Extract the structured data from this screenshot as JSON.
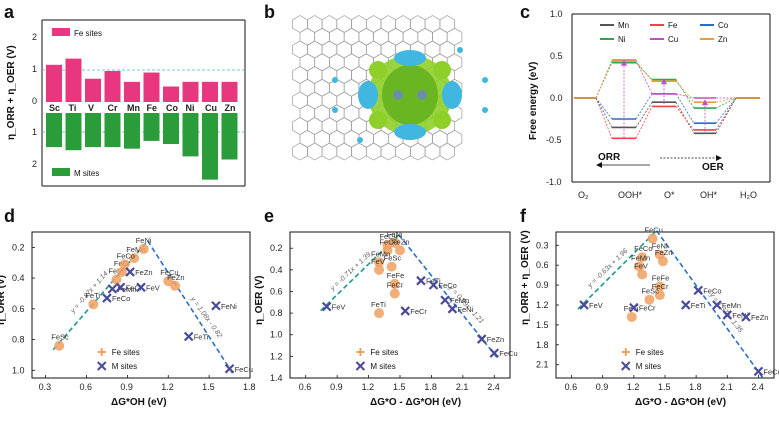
{
  "panels": {
    "a": {
      "label": "a",
      "ylabel": "η_ORR + η_OER (V)",
      "yticks_top": [
        "2",
        "1",
        "0"
      ],
      "yticks_bottom": [
        "1",
        "2"
      ],
      "legend_top": "Fe sites",
      "legend_bottom": "M sites",
      "categories": [
        "Sc",
        "Ti",
        "V",
        "Cr",
        "Mn",
        "Fe",
        "Co",
        "Ni",
        "Cu",
        "Zn"
      ],
      "fe_sites": [
        1.2,
        1.4,
        0.75,
        1.0,
        0.65,
        0.95,
        0.5,
        0.65,
        0.65,
        0.65
      ],
      "m_sites": [
        1.1,
        1.2,
        1.1,
        1.1,
        1.15,
        0.9,
        1.0,
        1.4,
        2.15,
        1.5
      ],
      "colors": {
        "fe": "#e8377f",
        "m": "#2a9d3a"
      }
    },
    "b": {
      "label": "b"
    },
    "c": {
      "label": "c",
      "ylabel": "Free energy (eV)",
      "yticks": [
        "1.0",
        "0.5",
        "0.0",
        "-0.5",
        "-1.0"
      ],
      "xcats": [
        "O₂",
        "OOH*",
        "O*",
        "OH*",
        "H₂O"
      ],
      "legend": [
        "Mn",
        "Fe",
        "Co",
        "Ni",
        "Cu",
        "Zn"
      ],
      "colors": {
        "Mn": "#555555",
        "Fe": "#e84545",
        "Co": "#2a6fc7",
        "Ni": "#2aa84a",
        "Cu": "#c84ac8",
        "Zn": "#e8a030"
      },
      "orr": "ORR",
      "oer": "OER"
    },
    "d": {
      "label": "d",
      "ylabel": "η_ORR (V)",
      "xlabel": "ΔG*OH (eV)",
      "xticks": [
        "0.3",
        "0.6",
        "0.9",
        "1.2",
        "1.5",
        "1.8"
      ],
      "yticks": [
        "0.2",
        "0.4",
        "0.6",
        "0.8",
        "1.0"
      ],
      "eq_left": "y = -0.87x + 1.14",
      "eq_right": "y = 1.08x - 0.82",
      "legend": [
        "Fe sites",
        "M sites"
      ],
      "fe_points": [
        {
          "n": "FeSc",
          "x": 0.4,
          "y": 0.84
        },
        {
          "n": "FeTi",
          "x": 0.65,
          "y": 0.57
        },
        {
          "n": "FeV",
          "x": 0.82,
          "y": 0.41
        },
        {
          "n": "FeCr",
          "x": 0.86,
          "y": 0.36
        },
        {
          "n": "FeMn",
          "x": 0.95,
          "y": 0.27
        },
        {
          "n": "FeCo",
          "x": 0.88,
          "y": 0.31
        },
        {
          "n": "FeNi",
          "x": 1.02,
          "y": 0.21
        },
        {
          "n": "FeCu",
          "x": 1.2,
          "y": 0.42
        },
        {
          "n": "FeZn",
          "x": 1.25,
          "y": 0.45
        }
      ],
      "m_points": [
        {
          "n": "FeCo",
          "x": 0.75,
          "y": 0.53
        },
        {
          "n": "FeMn",
          "x": 0.79,
          "y": 0.47
        },
        {
          "n": "FeCr",
          "x": 0.85,
          "y": 0.46
        },
        {
          "n": "FeV",
          "x": 1.0,
          "y": 0.46
        },
        {
          "n": "FeZn",
          "x": 0.92,
          "y": 0.36
        },
        {
          "n": "FeTi",
          "x": 1.35,
          "y": 0.78
        },
        {
          "n": "FeNi",
          "x": 1.55,
          "y": 0.58
        },
        {
          "n": "FeCu",
          "x": 1.65,
          "y": 0.99
        }
      ]
    },
    "e": {
      "label": "e",
      "ylabel": "η_OER (V)",
      "xlabel": "ΔG*O - ΔG*OH (eV)",
      "xticks": [
        "0.6",
        "0.9",
        "1.2",
        "1.5",
        "1.8",
        "2.1",
        "2.4"
      ],
      "yticks": [
        "0.2",
        "0.4",
        "0.6",
        "0.8",
        "1.0",
        "1.2",
        "1.4"
      ],
      "eq_left": "y = -0.71x + 1.39",
      "eq_right": "y = 0.99x - 1.21",
      "legend": [
        "Fe sites",
        "M sites"
      ],
      "fe_points": [
        {
          "n": "FeCu",
          "x": 1.38,
          "y": 0.17
        },
        {
          "n": "FeNi",
          "x": 1.45,
          "y": 0.15
        },
        {
          "n": "FeCo",
          "x": 1.38,
          "y": 0.22
        },
        {
          "n": "FeZn",
          "x": 1.5,
          "y": 0.22
        },
        {
          "n": "FeMn",
          "x": 1.3,
          "y": 0.33
        },
        {
          "n": "FeV",
          "x": 1.3,
          "y": 0.4
        },
        {
          "n": "FeSc",
          "x": 1.42,
          "y": 0.37
        },
        {
          "n": "FeFe",
          "x": 1.45,
          "y": 0.53
        },
        {
          "n": "FeCr",
          "x": 1.45,
          "y": 0.62
        },
        {
          "n": "FeTi",
          "x": 1.3,
          "y": 0.8
        }
      ],
      "m_points": [
        {
          "n": "FeV",
          "x": 0.8,
          "y": 0.74
        },
        {
          "n": "FeCr",
          "x": 1.55,
          "y": 0.78
        },
        {
          "n": "FeTi",
          "x": 1.7,
          "y": 0.5
        },
        {
          "n": "FeCo",
          "x": 1.82,
          "y": 0.54
        },
        {
          "n": "FeMn",
          "x": 1.93,
          "y": 0.68
        },
        {
          "n": "FeNi",
          "x": 2.0,
          "y": 0.76
        },
        {
          "n": "FeZn",
          "x": 2.28,
          "y": 1.04
        },
        {
          "n": "FeCu",
          "x": 2.4,
          "y": 1.17
        }
      ]
    },
    "f": {
      "label": "f",
      "ylabel": "η_ORR + η_OER (V)",
      "xlabel": "ΔG*O - ΔG*OH (eV)",
      "xticks": [
        "0.6",
        "0.9",
        "1.2",
        "1.5",
        "1.8",
        "2.1",
        "2.4"
      ],
      "yticks": [
        "0.3",
        "0.6",
        "0.9",
        "1.2",
        "1.5",
        "1.8",
        "2.1"
      ],
      "eq_left": "y = -0.63x + 1.96",
      "eq_right": "y = 1.37x - 1.35",
      "legend": [
        "Fe sites",
        "M sites"
      ],
      "fe_points": [
        {
          "n": "FeCu",
          "x": 1.38,
          "y": 0.2
        },
        {
          "n": "FeNi",
          "x": 1.45,
          "y": 0.44
        },
        {
          "n": "FeCo",
          "x": 1.28,
          "y": 0.48
        },
        {
          "n": "FeZn",
          "x": 1.48,
          "y": 0.54
        },
        {
          "n": "FeMn",
          "x": 1.25,
          "y": 0.62
        },
        {
          "n": "FeV",
          "x": 1.28,
          "y": 0.74
        },
        {
          "n": "FeFe",
          "x": 1.45,
          "y": 0.92
        },
        {
          "n": "FeCr",
          "x": 1.45,
          "y": 1.05
        },
        {
          "n": "FeSc",
          "x": 1.35,
          "y": 1.12
        },
        {
          "n": "FeTi",
          "x": 1.18,
          "y": 1.38
        }
      ],
      "m_points": [
        {
          "n": "FeV",
          "x": 0.72,
          "y": 1.2
        },
        {
          "n": "FeCr",
          "x": 1.2,
          "y": 1.24
        },
        {
          "n": "FeTi",
          "x": 1.7,
          "y": 1.2
        },
        {
          "n": "FeCo",
          "x": 1.82,
          "y": 0.98
        },
        {
          "n": "FeMn",
          "x": 2.0,
          "y": 1.2
        },
        {
          "n": "FeNi",
          "x": 2.1,
          "y": 1.35
        },
        {
          "n": "FeZn",
          "x": 2.28,
          "y": 1.38
        },
        {
          "n": "FeCu",
          "x": 2.4,
          "y": 2.2
        }
      ]
    }
  }
}
